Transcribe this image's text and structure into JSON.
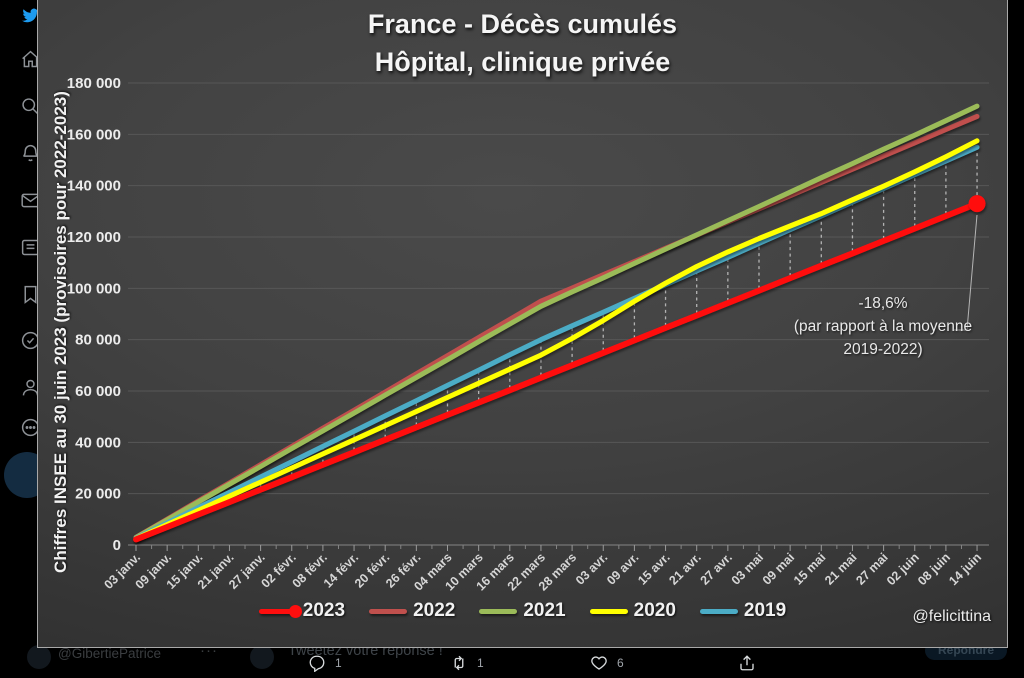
{
  "sidebar": {
    "icons": [
      "twitter-bird-icon",
      "home-icon",
      "search-icon",
      "notifications-icon",
      "messages-icon",
      "lists-icon",
      "bookmarks-icon",
      "verified-icon",
      "profile-icon",
      "more-icon",
      "compose-button"
    ],
    "bird_color": "#1d9bf0"
  },
  "tweet_bar": {
    "background_row": {
      "handle": "@GibertiePatrice",
      "more_menu": "···",
      "reply_prompt": "Tweetez votre réponse !",
      "reply_button": "Répondre"
    },
    "actions": [
      {
        "name": "reply",
        "count": "1"
      },
      {
        "name": "retweet",
        "count": "1"
      },
      {
        "name": "like",
        "count": "6"
      },
      {
        "name": "share",
        "count": ""
      }
    ]
  },
  "chart": {
    "title_line1": "France - Décès cumulés",
    "title_line2": "Hôpital, clinique privée",
    "y_axis_title": "Chiffres INSEE au 30 juin 2023 (provisoires pour 2022-2023)",
    "watermark": "@felicittina",
    "annotation": {
      "line1": "-18,6%",
      "line2": "(par rapport à la moyenne",
      "line3": "2019-2022)"
    }
  },
  "chart_data": {
    "type": "line",
    "title": "France - Décès cumulés — Hôpital, clinique privée",
    "ylabel": "Chiffres INSEE au 30 juin 2023 (provisoires pour 2022-2023)",
    "xlabel": "",
    "ylim": [
      0,
      180000
    ],
    "ytick_step": 20000,
    "ytick_labels": [
      "0",
      "20 000",
      "40 000",
      "60 000",
      "80 000",
      "100 000",
      "120 000",
      "140 000",
      "160 000",
      "180 000"
    ],
    "grid": "horizontal",
    "legend_position": "bottom",
    "categories": [
      "03 janv.",
      "09 janv.",
      "15 janv.",
      "21 janv.",
      "27 janv.",
      "02 févr.",
      "08 févr.",
      "14 févr.",
      "20 févr.",
      "26 févr.",
      "04 mars",
      "10 mars",
      "16 mars",
      "22 mars",
      "28 mars",
      "03 avr.",
      "09 avr.",
      "15 avr.",
      "21 avr.",
      "27 avr.",
      "03 mai",
      "09 mai",
      "15 mai",
      "21 mai",
      "27 mai",
      "02 juin",
      "08 juin",
      "14 juin"
    ],
    "series": [
      {
        "name": "2023",
        "color": "#ff0e0e",
        "end_marker": true,
        "values": [
          2200,
          7000,
          11900,
          16700,
          21600,
          26400,
          31300,
          36100,
          41000,
          45800,
          50700,
          55500,
          60300,
          65200,
          70000,
          74900,
          79700,
          84600,
          89400,
          94300,
          99100,
          104000,
          108800,
          113600,
          118500,
          123300,
          128200,
          133000
        ]
      },
      {
        "name": "2022",
        "color": "#c0504d",
        "values": [
          3000,
          10100,
          17200,
          24200,
          31300,
          38400,
          45500,
          52500,
          59600,
          66700,
          73800,
          80800,
          87900,
          95000,
          100100,
          105300,
          110400,
          115600,
          120700,
          125900,
          131000,
          136100,
          141300,
          146400,
          151600,
          156700,
          161900,
          167000
        ]
      },
      {
        "name": "2021",
        "color": "#9bbb59",
        "values": [
          2900,
          9800,
          16800,
          23700,
          30600,
          37600,
          44500,
          51400,
          58400,
          65300,
          72200,
          79200,
          86100,
          93000,
          98600,
          104100,
          109700,
          115300,
          120800,
          126400,
          131900,
          137500,
          143100,
          148600,
          154200,
          159700,
          165300,
          171000
        ]
      },
      {
        "name": "2020",
        "color": "#ffff00",
        "values": [
          2500,
          8000,
          13500,
          19000,
          24500,
          30000,
          35500,
          41000,
          46500,
          52000,
          57500,
          63000,
          68500,
          74000,
          80500,
          87500,
          95000,
          102000,
          108500,
          114200,
          119400,
          124300,
          129100,
          134500,
          139800,
          145400,
          151300,
          157500
        ]
      },
      {
        "name": "2019",
        "color": "#4bacc6",
        "values": [
          2700,
          8600,
          14600,
          20500,
          26500,
          32400,
          38400,
          44300,
          50300,
          56200,
          62200,
          68100,
          74100,
          80000,
          85400,
          90700,
          96100,
          101400,
          106800,
          112100,
          117500,
          122900,
          128200,
          133600,
          138900,
          144300,
          149600,
          155000
        ]
      }
    ],
    "drop_lines": {
      "from": "2023",
      "to": "2019",
      "style": "dashed"
    }
  }
}
